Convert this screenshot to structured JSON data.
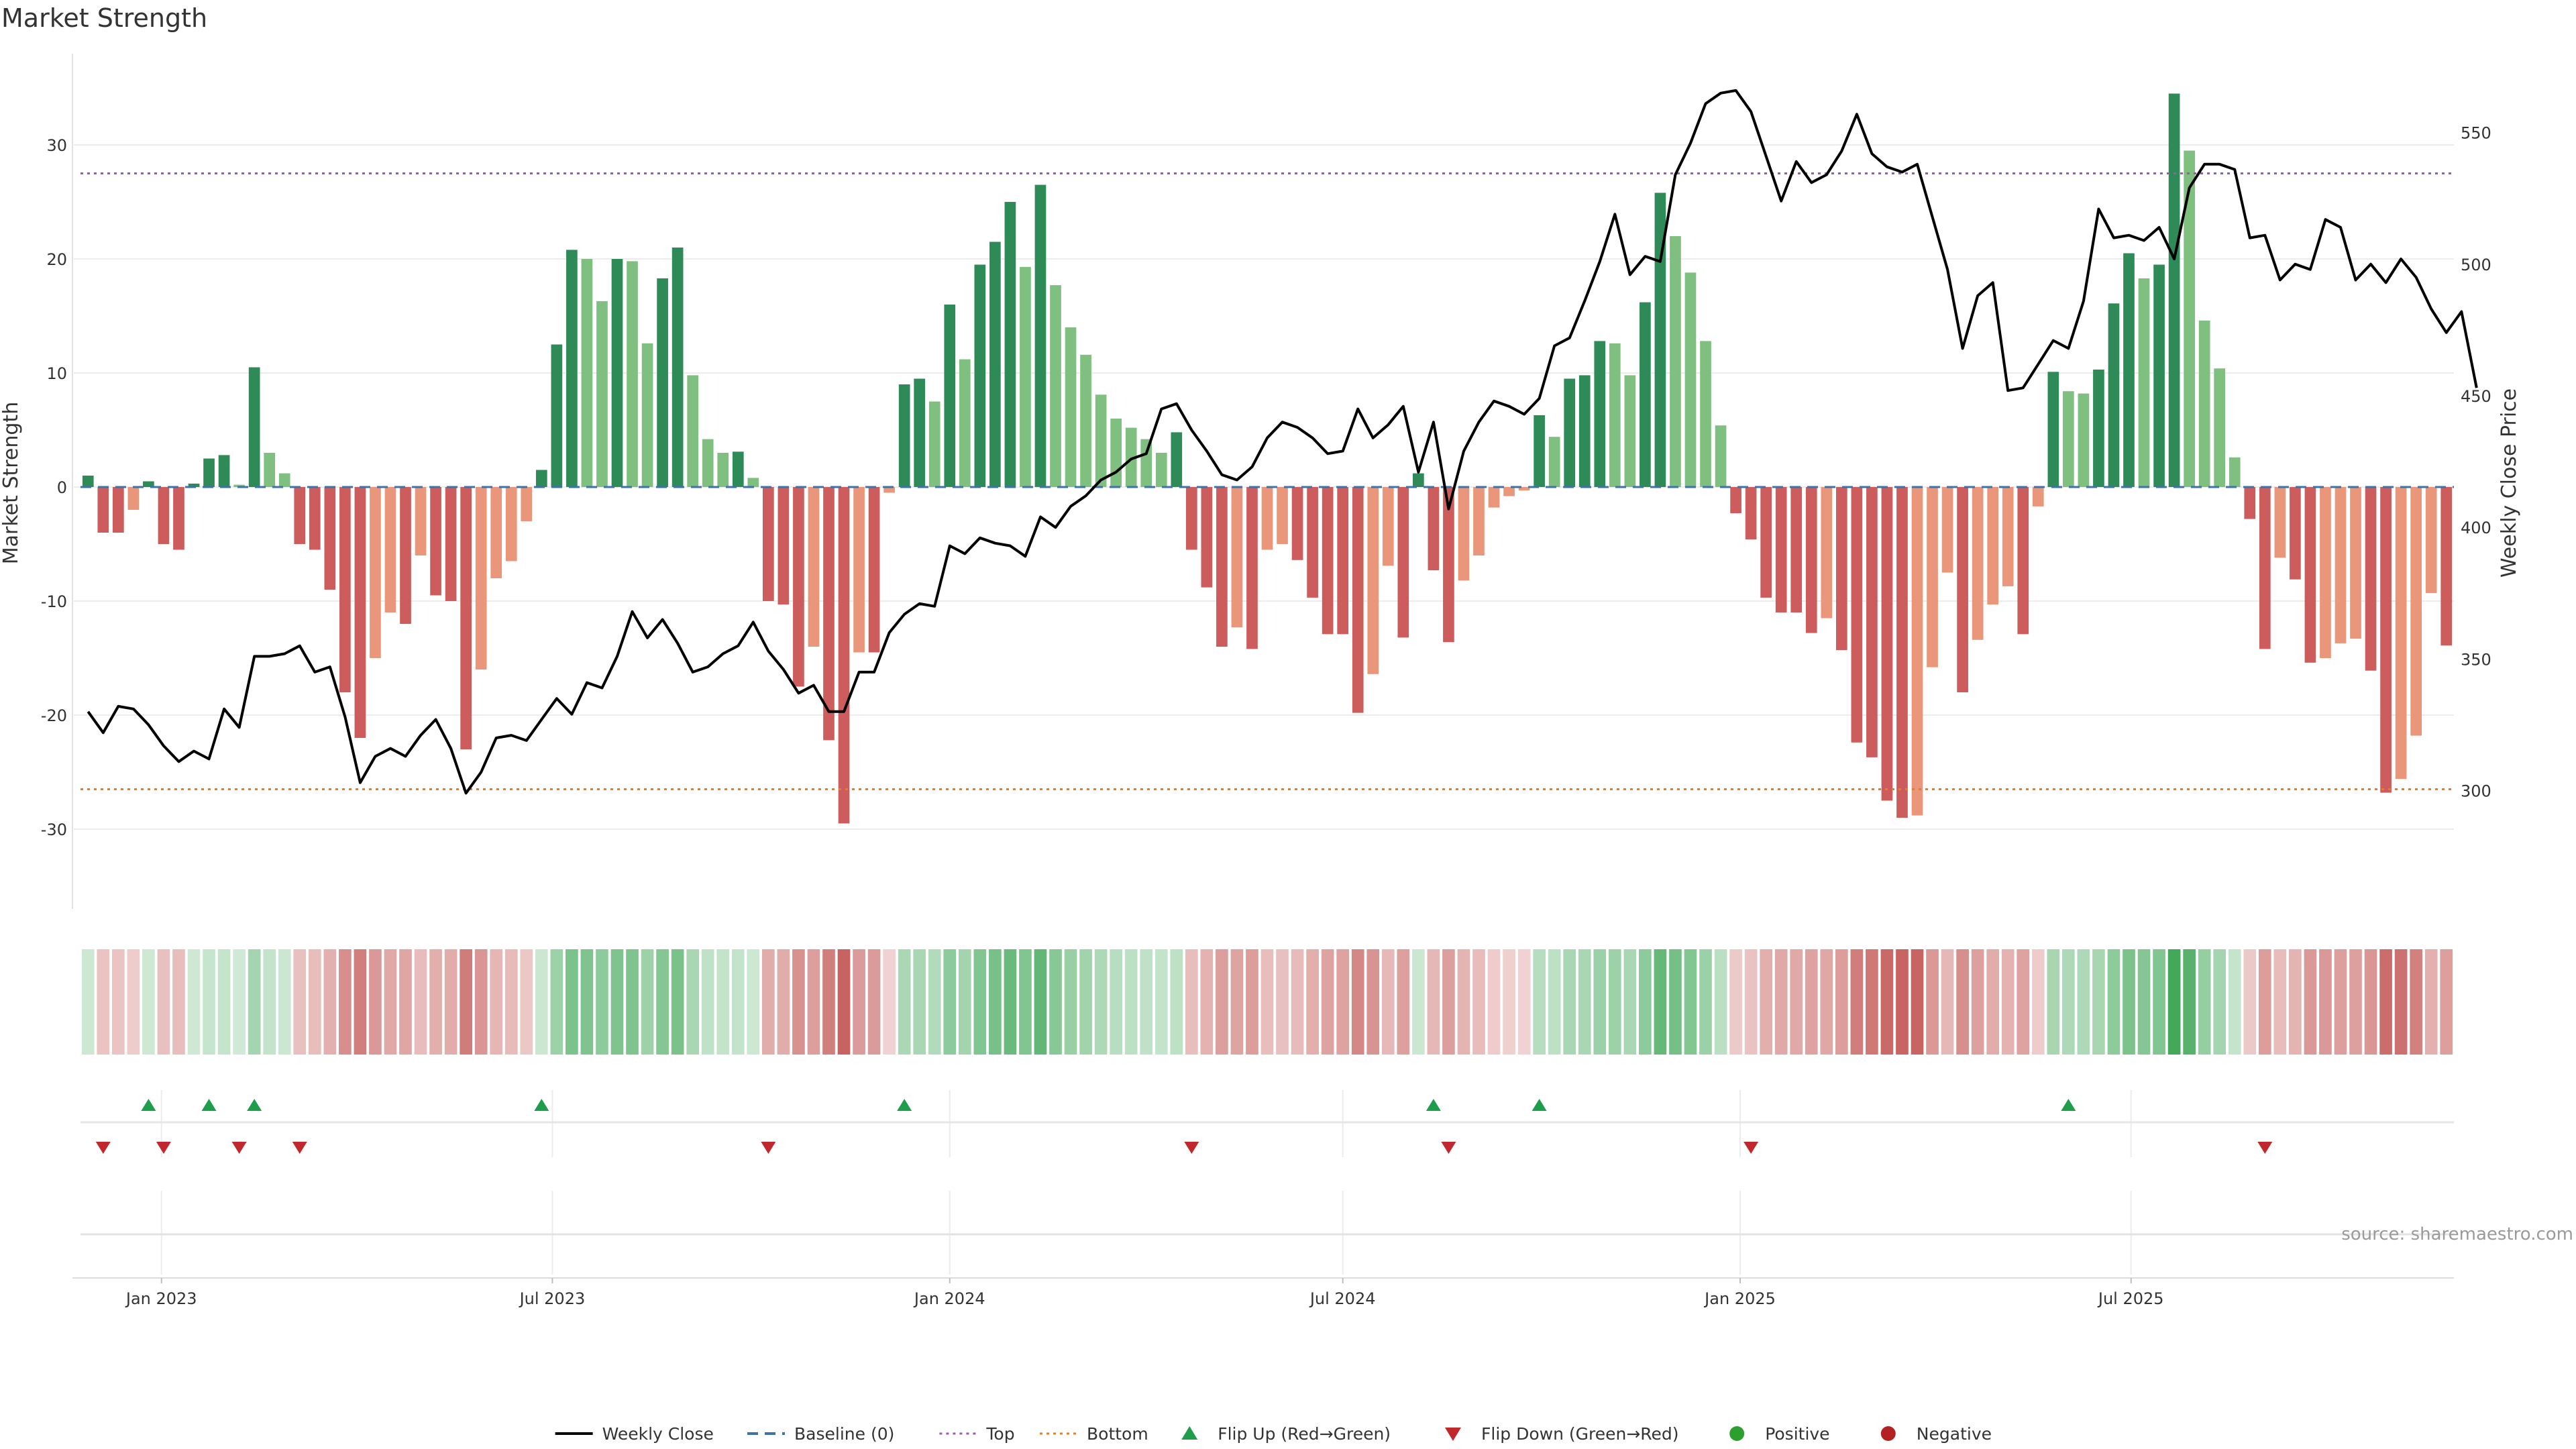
{
  "chart_data": {
    "type": "bar",
    "title": "Market Strength",
    "ylabel": "Market Strength",
    "y2label": "Weekly Close Price",
    "ylim": [
      -37,
      38
    ],
    "y2lim": [
      255,
      580
    ],
    "yticks": [
      -30,
      -20,
      -10,
      0,
      10,
      20,
      30
    ],
    "y2ticks": [
      300,
      350,
      400,
      450,
      500,
      550
    ],
    "start_date": "2022-11-28",
    "xticks": [
      {
        "label": "Jan 2023",
        "date": "2023-01-01"
      },
      {
        "label": "Jul 2023",
        "date": "2023-07-01"
      },
      {
        "label": "Jan 2024",
        "date": "2024-01-01"
      },
      {
        "label": "Jul 2024",
        "date": "2024-07-01"
      },
      {
        "label": "Jan 2025",
        "date": "2025-01-01"
      },
      {
        "label": "Jul 2025",
        "date": "2025-07-01"
      }
    ],
    "top_level": 27.5,
    "bottom_level": -26.5,
    "series": [
      {
        "name": "Market Strength",
        "values": [
          1,
          -4,
          -4,
          -2,
          0.5,
          -5,
          -5.5,
          0.3,
          2.5,
          2.8,
          0.2,
          10.5,
          3,
          1.2,
          -5,
          -5.5,
          -9,
          -18,
          -22,
          -15,
          -11,
          -12,
          -6,
          -9.5,
          -10,
          -23,
          -16,
          -8,
          -6.5,
          -3,
          1.5,
          12.5,
          20.8,
          20,
          16.3,
          20,
          19.8,
          12.6,
          18.3,
          21,
          9.8,
          4.2,
          3,
          3.1,
          0.8,
          -10,
          -10.3,
          -17.5,
          -14,
          -22.2,
          -29.5,
          -14.5,
          -14.5,
          -0.5,
          9,
          9.5,
          7.5,
          16,
          11.2,
          19.5,
          21.5,
          25,
          19.3,
          26.5,
          17.7,
          14,
          11.6,
          8.1,
          6,
          5.2,
          4.2,
          3,
          4.8,
          -5.5,
          -8.8,
          -14,
          -12.3,
          -14.2,
          -5.5,
          -5,
          -6.4,
          -9.7,
          -12.9,
          -12.9,
          -19.8,
          -16.4,
          -6.9,
          -13.2,
          1.2,
          -7.3,
          -13.6,
          -8.2,
          -6,
          -1.8,
          -0.8,
          -0.3,
          6.3,
          4.4,
          9.5,
          9.8,
          12.8,
          12.6,
          9.8,
          16.2,
          25.8,
          22,
          18.8,
          12.8,
          5.4,
          -2.3,
          -4.6,
          -9.7,
          -11,
          -11,
          -12.8,
          -11.5,
          -14.3,
          -22.4,
          -23.7,
          -27.5,
          -29,
          -28.8,
          -15.8,
          -7.5,
          -18,
          -13.4,
          -10.3,
          -8.7,
          -12.9,
          -1.7,
          10.1,
          8.4,
          8.2,
          10.3,
          16.1,
          20.5,
          18.3,
          19.5,
          34.5,
          29.5,
          14.6,
          10.4,
          2.6,
          -2.8,
          -14.2,
          -6.2,
          -8.1,
          -15.4,
          -15,
          -13.7,
          -13.3,
          -16.1,
          -26.8,
          -25.6,
          -21.8,
          -9.3,
          -13.9
        ]
      },
      {
        "name": "Weekly Close",
        "values": [
          330,
          322,
          332,
          331,
          325,
          317,
          311,
          315,
          312,
          331,
          324,
          351,
          351,
          352,
          355,
          345,
          347,
          328,
          303,
          313,
          316,
          313,
          321,
          327,
          316,
          299,
          307,
          320,
          321,
          319,
          327,
          335,
          329,
          341,
          339,
          351,
          368,
          358,
          365,
          356,
          345,
          347,
          352,
          355,
          364,
          353,
          346,
          337,
          340,
          330,
          330,
          345,
          345,
          360,
          367,
          371,
          370,
          393,
          390,
          396,
          394,
          393,
          389,
          404,
          400,
          408,
          412,
          418,
          421,
          426,
          428,
          445,
          447,
          437,
          429,
          420,
          418,
          423,
          434,
          440,
          438,
          434,
          428,
          429,
          445,
          434,
          439,
          446,
          421,
          440,
          407,
          429,
          440,
          448,
          446,
          443,
          449,
          469,
          472,
          486,
          501,
          519,
          496,
          503,
          501,
          534,
          546,
          561,
          565,
          566,
          558,
          541,
          524,
          539,
          531,
          534,
          543,
          557,
          542,
          537,
          535,
          538,
          518,
          498,
          468,
          488,
          493,
          452,
          453,
          462,
          471,
          468,
          486,
          521,
          510,
          511,
          509,
          514,
          502,
          529,
          538,
          538,
          536,
          510,
          511,
          494,
          500,
          498,
          517,
          514,
          494,
          500,
          493,
          502,
          495,
          483,
          474,
          482,
          453
        ]
      }
    ],
    "flip_up_weeks": [
      4,
      8,
      11,
      30,
      54,
      89,
      96,
      131
    ],
    "flip_down_weeks": [
      1,
      5,
      10,
      14,
      45,
      73,
      90,
      110,
      144
    ],
    "colors": {
      "positive_strong": "#2e8b57",
      "positive_light": "#7fbf7f",
      "negative_strong": "#cd5c5c",
      "negative_light": "#e9967a",
      "price_line": "#000000",
      "baseline": "#3f73a8",
      "top": "#9b59b6",
      "bottom": "#e67e22",
      "flip_up": "#1e9e4a",
      "flip_down": "#c0282d",
      "positive_dot": "#2ca02c",
      "negative_dot": "#b22222",
      "heat_positive": "#43a85a",
      "heat_negative": "#c0504d"
    }
  },
  "legend": [
    {
      "label": "Weekly Close",
      "kind": "line"
    },
    {
      "label": "Baseline (0)",
      "kind": "dash"
    },
    {
      "label": "Top",
      "kind": "dot-purple"
    },
    {
      "label": "Bottom",
      "kind": "dot-orange"
    },
    {
      "label": "Flip Up (Red→Green)",
      "kind": "tri-up"
    },
    {
      "label": "Flip Down (Green→Red)",
      "kind": "tri-down"
    },
    {
      "label": "Positive",
      "kind": "dot-green"
    },
    {
      "label": "Negative",
      "kind": "dot-red"
    }
  ],
  "source": "source: sharemaestro.com"
}
